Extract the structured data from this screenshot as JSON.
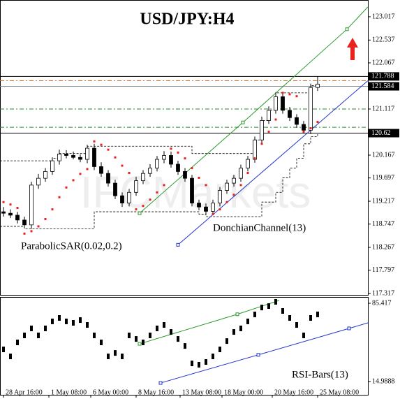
{
  "chart_data": {
    "type": "candlestick",
    "title": "USD/JPY:H4",
    "watermark": "IFCMarkets",
    "xticks": [
      {
        "value": 0,
        "label": "28 Apr 16:00"
      },
      {
        "value": 6.5,
        "label": "1 May 08:00"
      },
      {
        "value": 12.5,
        "label": "6 May 00:00"
      },
      {
        "value": 19,
        "label": "8 May 16:00"
      },
      {
        "value": 25.3,
        "label": "13 May 08:00"
      },
      {
        "value": 31.3,
        "label": "18 May 00:00"
      },
      {
        "value": 38.5,
        "label": "20 May 16:00"
      },
      {
        "value": 45,
        "label": "25 May 08:00"
      }
    ],
    "xlim": [
      -0.5,
      52.2
    ],
    "ylim": [
      117.274,
      123.362
    ],
    "yticks": [
      123.017,
      122.537,
      122.067,
      121.117,
      120.167,
      119.697,
      119.217,
      118.747,
      118.267,
      117.797,
      117.317
    ],
    "open": [
      119.0,
      118.97,
      118.93,
      118.83,
      118.73,
      119.55,
      119.69,
      119.83,
      120.05,
      120.19,
      120.16,
      120.12,
      120.08,
      120.31,
      119.93,
      119.79,
      119.59,
      119.33,
      119.18,
      119.4,
      119.64,
      119.79,
      119.9,
      120.08,
      120.16,
      119.98,
      119.83,
      119.69,
      119.18,
      119.1,
      119.01,
      119.18,
      119.44,
      119.59,
      119.69,
      119.9,
      120.08,
      120.48,
      120.88,
      121.09,
      121.37,
      121.09,
      120.94,
      120.8,
      120.68,
      121.56
    ],
    "high": [
      119.1,
      119.05,
      119.0,
      118.9,
      119.62,
      119.78,
      119.9,
      120.12,
      120.28,
      120.27,
      120.24,
      120.18,
      120.38,
      120.4,
      120.02,
      119.86,
      119.66,
      119.4,
      119.47,
      119.72,
      119.86,
      119.98,
      120.15,
      120.25,
      120.24,
      120.05,
      119.9,
      119.76,
      119.25,
      119.17,
      119.25,
      119.51,
      119.66,
      119.76,
      119.97,
      120.15,
      120.55,
      120.96,
      121.17,
      121.46,
      121.45,
      121.16,
      121.01,
      120.87,
      121.64,
      121.79
    ],
    "low": [
      118.9,
      118.87,
      118.76,
      118.66,
      118.65,
      119.47,
      119.62,
      119.76,
      119.97,
      120.1,
      120.08,
      120.02,
      120.0,
      119.86,
      119.72,
      119.52,
      119.26,
      119.1,
      119.11,
      119.33,
      119.57,
      119.72,
      119.83,
      120.0,
      119.91,
      119.76,
      119.62,
      119.11,
      119.03,
      118.94,
      118.94,
      119.11,
      119.37,
      119.52,
      119.62,
      119.83,
      120.01,
      120.41,
      120.81,
      121.02,
      121.02,
      120.87,
      120.73,
      120.61,
      120.6,
      121.49
    ],
    "close": [
      118.97,
      118.93,
      118.83,
      118.73,
      119.55,
      119.69,
      119.83,
      120.05,
      120.19,
      120.16,
      120.12,
      120.08,
      120.31,
      119.93,
      119.79,
      119.59,
      119.33,
      119.18,
      119.4,
      119.64,
      119.79,
      119.9,
      120.08,
      120.16,
      119.98,
      119.83,
      119.69,
      119.18,
      119.1,
      119.01,
      119.18,
      119.44,
      119.59,
      119.69,
      119.9,
      120.08,
      120.48,
      120.88,
      121.09,
      121.37,
      121.09,
      120.94,
      120.8,
      120.68,
      121.56,
      121.63
    ],
    "up_color": "#ffffff",
    "down_color": "#000000",
    "sar": {
      "name": "ParabolicSAR(0.02,0.2)",
      "color": "#e8231f",
      "values": [
        119.2,
        119.15,
        119.08,
        118.55,
        118.6,
        118.7,
        118.85,
        119.05,
        119.3,
        119.5,
        119.65,
        119.78,
        119.88,
        120.45,
        120.38,
        120.28,
        120.12,
        119.95,
        119.8,
        119.05,
        119.12,
        119.25,
        119.4,
        119.55,
        120.3,
        120.22,
        120.1,
        119.9,
        119.7,
        119.55,
        118.95,
        119.05,
        119.2,
        119.35,
        119.55,
        119.8,
        120.1,
        120.4,
        120.65,
        120.9,
        121.45,
        121.42,
        121.38,
        120.65,
        120.72,
        120.85
      ]
    },
    "donchian": {
      "name": "DonchianChannel(13)",
      "color": "#000000",
      "upper": [
        120.05,
        120.05,
        120.05,
        120.05,
        120.05,
        120.05,
        120.05,
        120.1,
        120.2,
        120.2,
        120.2,
        120.2,
        120.35,
        120.35,
        120.35,
        120.35,
        120.35,
        120.35,
        120.35,
        120.35,
        120.35,
        120.35,
        120.35,
        120.35,
        120.35,
        120.35,
        120.35,
        120.2,
        120.2,
        120.2,
        120.2,
        120.2,
        120.2,
        120.2,
        120.2,
        120.2,
        120.48,
        120.88,
        121.09,
        121.45,
        121.45,
        121.45,
        121.45,
        121.45,
        121.6,
        121.7
      ],
      "lower": [
        118.7,
        118.7,
        118.7,
        118.65,
        118.65,
        118.65,
        118.65,
        118.65,
        118.65,
        118.65,
        118.65,
        118.65,
        118.65,
        119.0,
        119.0,
        119.0,
        119.0,
        119.0,
        119.0,
        119.0,
        119.0,
        119.0,
        119.0,
        119.0,
        119.0,
        119.0,
        119.0,
        119.0,
        118.95,
        118.9,
        118.9,
        118.9,
        118.9,
        118.9,
        118.9,
        118.9,
        118.9,
        119.2,
        119.2,
        119.4,
        119.7,
        119.9,
        120.1,
        120.4,
        120.55,
        120.6
      ]
    },
    "levels": [
      {
        "value": 121.788,
        "color": "#000000",
        "dash": false,
        "boxed": true
      },
      {
        "value": 121.7,
        "color": "#e07020",
        "dash": true,
        "boxed": false
      },
      {
        "value": 121.584,
        "color": "#888888",
        "dash": false,
        "boxed": true
      },
      {
        "value": 121.117,
        "color": "#2a8a2a",
        "dash": true,
        "boxed": false
      },
      {
        "value": 120.74,
        "color": "#2a8a2a",
        "dash": true,
        "boxed": false
      },
      {
        "value": 120.62,
        "color": "#000000",
        "dash": false,
        "boxed": true
      }
    ],
    "trendlines": [
      {
        "color": "#2a9a2a",
        "x": [
          19.5,
          34.3,
          49.2,
          52.2
        ],
        "y": [
          118.97,
          120.84,
          122.76,
          123.22
        ]
      },
      {
        "color": "#2233cc",
        "x": [
          25,
          52.2
        ],
        "y": [
          118.32,
          121.7
        ]
      }
    ],
    "rsi": {
      "name": "RSI-Bars(13)",
      "color": "#000000",
      "ylim": [
        3.04,
        91.07
      ],
      "yticks": [
        85.417,
        14.9888
      ],
      "values": [
        43.9,
        37.6,
        50.2,
        56.5,
        62.8,
        56.5,
        62.8,
        69.1,
        72.2,
        69.1,
        67.8,
        70.3,
        65.9,
        56.5,
        50.2,
        37.6,
        40.7,
        37.6,
        56.5,
        53.3,
        50.2,
        56.5,
        62.8,
        65.9,
        59.6,
        53.3,
        47.0,
        31.3,
        30.1,
        32.6,
        37.6,
        43.9,
        51.4,
        59.6,
        62.8,
        69.1,
        75.4,
        81.6,
        82.9,
        86.7,
        78.5,
        72.2,
        65.9,
        56.5,
        72.2,
        75.4
      ],
      "trendlines": [
        {
          "color": "#2a9a2a",
          "x": [
            19.5,
            33.5,
            39.5
          ],
          "y": [
            48.9,
            75.5,
            88.0
          ]
        },
        {
          "color": "#2233cc",
          "x": [
            22.5,
            36.5,
            49.5,
            52.2
          ],
          "y": [
            13.7,
            39.0,
            62.8,
            67.8
          ]
        }
      ]
    }
  }
}
